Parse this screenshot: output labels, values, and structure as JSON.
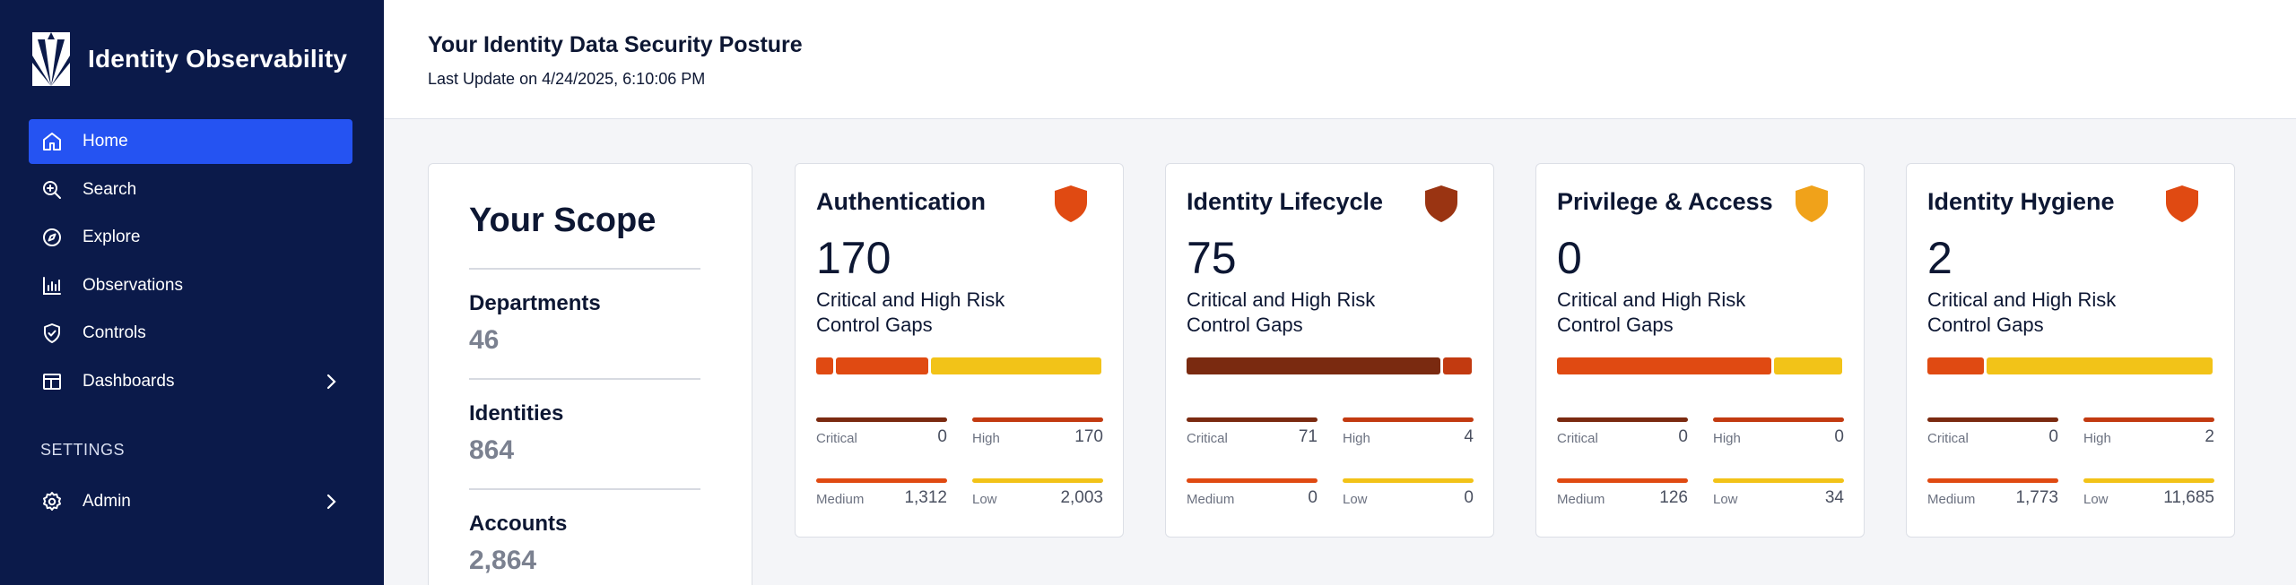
{
  "app": {
    "title": "Identity Observability"
  },
  "colors": {
    "sidebar_bg": "#0b1a4a",
    "active_nav": "#2553f2",
    "critical": "#7a2a10",
    "high": "#e04a12",
    "medium": "#e04a12",
    "low": "#f2c318"
  },
  "sidebar": {
    "items": [
      {
        "label": "Home",
        "icon": "home-icon",
        "active": true
      },
      {
        "label": "Search",
        "icon": "search-icon"
      },
      {
        "label": "Explore",
        "icon": "compass-icon"
      },
      {
        "label": "Observations",
        "icon": "chart-icon"
      },
      {
        "label": "Controls",
        "icon": "shield-check-icon"
      },
      {
        "label": "Dashboards",
        "icon": "dashboard-icon",
        "has_submenu": true
      }
    ],
    "settings_label": "SETTINGS",
    "settings_items": [
      {
        "label": "Admin",
        "icon": "gear-icon",
        "has_submenu": true
      }
    ]
  },
  "header": {
    "title": "Your Identity Data Security Posture",
    "last_update": "Last Update on 4/24/2025, 6:10:06 PM"
  },
  "scope": {
    "title": "Your Scope",
    "items": [
      {
        "label": "Departments",
        "value": "46"
      },
      {
        "label": "Identities",
        "value": "864"
      },
      {
        "label": "Accounts",
        "value": "2,864"
      }
    ]
  },
  "cards": [
    {
      "title": "Authentication",
      "shield_color": "#e04a12",
      "count": "170",
      "subtitle": "Critical and High Risk Control Gaps",
      "bar": [
        {
          "fraction": 0.06,
          "color": "#e04a12"
        },
        {
          "fraction": 0.33,
          "color": "#e04a12"
        },
        {
          "fraction": 0.61,
          "color": "#f2c318"
        }
      ],
      "stats": {
        "critical": {
          "label": "Critical",
          "value": "0"
        },
        "high": {
          "label": "High",
          "value": "170"
        },
        "medium": {
          "label": "Medium",
          "value": "1,312"
        },
        "low": {
          "label": "Low",
          "value": "2,003"
        }
      }
    },
    {
      "title": "Identity Lifecycle",
      "shield_color": "#9a3412",
      "count": "75",
      "subtitle": "Critical and High Risk Control Gaps",
      "bar": [
        {
          "fraction": 0.9,
          "color": "#7a2a10"
        },
        {
          "fraction": 0.1,
          "color": "#c23a10"
        }
      ],
      "stats": {
        "critical": {
          "label": "Critical",
          "value": "71"
        },
        "high": {
          "label": "High",
          "value": "4"
        },
        "medium": {
          "label": "Medium",
          "value": "0"
        },
        "low": {
          "label": "Low",
          "value": "0"
        }
      }
    },
    {
      "title": "Privilege & Access",
      "shield_color": "#f0a21a",
      "count": "0",
      "subtitle": "Critical and High Risk Control Gaps",
      "bar": [
        {
          "fraction": 0.76,
          "color": "#e04a12"
        },
        {
          "fraction": 0.24,
          "color": "#f2c318"
        }
      ],
      "stats": {
        "critical": {
          "label": "Critical",
          "value": "0"
        },
        "high": {
          "label": "High",
          "value": "0"
        },
        "medium": {
          "label": "Medium",
          "value": "126"
        },
        "low": {
          "label": "Low",
          "value": "34"
        }
      }
    },
    {
      "title": "Identity Hygiene",
      "shield_color": "#e04a12",
      "count": "2",
      "subtitle": "Critical and High Risk Control Gaps",
      "bar": [
        {
          "fraction": 0.2,
          "color": "#e04a12"
        },
        {
          "fraction": 0.8,
          "color": "#f2c318"
        }
      ],
      "stats": {
        "critical": {
          "label": "Critical",
          "value": "0"
        },
        "high": {
          "label": "High",
          "value": "2"
        },
        "medium": {
          "label": "Medium",
          "value": "1,773"
        },
        "low": {
          "label": "Low",
          "value": "11,685"
        }
      }
    }
  ]
}
